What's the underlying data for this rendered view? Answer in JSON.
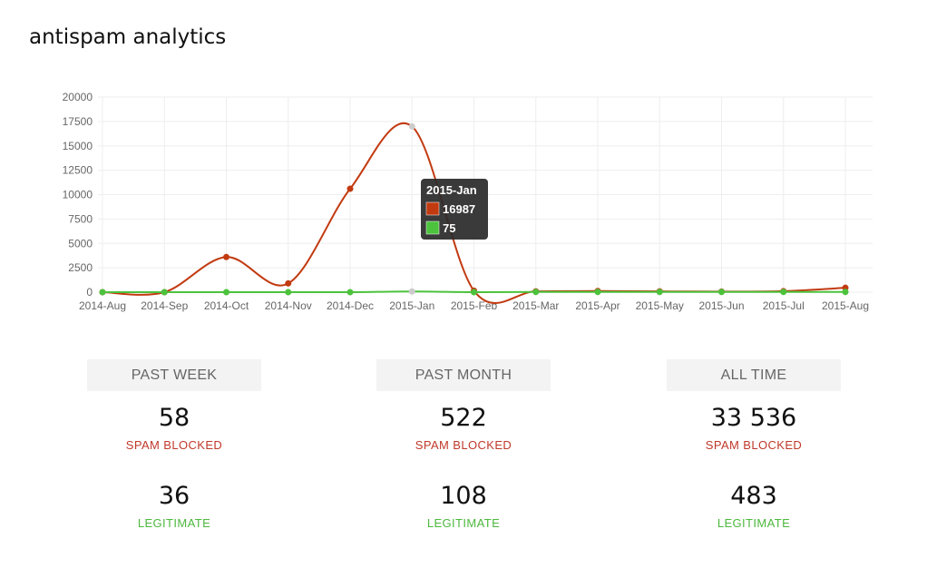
{
  "page": {
    "title": "antispam analytics"
  },
  "chart_data": {
    "type": "line",
    "x": [
      "2014-Aug",
      "2014-Sep",
      "2014-Oct",
      "2014-Nov",
      "2014-Dec",
      "2015-Jan",
      "2015-Feb",
      "2015-Mar",
      "2015-Apr",
      "2015-May",
      "2015-Jun",
      "2015-Jul",
      "2015-Aug"
    ],
    "ylim": [
      0,
      20000
    ],
    "yticks": [
      0,
      2500,
      5000,
      7500,
      10000,
      12500,
      15000,
      17500,
      20000
    ],
    "grid": true,
    "series": [
      {
        "name": "",
        "color": "#c23a10",
        "values": [
          0,
          0,
          3600,
          900,
          10600,
          16987,
          150,
          80,
          120,
          80,
          60,
          100,
          450
        ]
      },
      {
        "name": "",
        "color": "#4cc23d",
        "values": [
          0,
          0,
          0,
          0,
          0,
          75,
          0,
          20,
          20,
          20,
          20,
          20,
          20
        ]
      }
    ],
    "tooltip": {
      "title": "2015-Jan",
      "rows": [
        {
          "color": "#c23a10",
          "value": "16987"
        },
        {
          "color": "#4cc23d",
          "value": "75"
        }
      ]
    }
  },
  "stats": {
    "columns": [
      {
        "header": "PAST WEEK",
        "spam": "58",
        "spam_label": "SPAM BLOCKED",
        "legit": "36",
        "legit_label": "LEGITIMATE"
      },
      {
        "header": "PAST MONTH",
        "spam": "522",
        "spam_label": "SPAM BLOCKED",
        "legit": "108",
        "legit_label": "LEGITIMATE"
      },
      {
        "header": "ALL TIME",
        "spam": "33 536",
        "spam_label": "SPAM BLOCKED",
        "legit": "483",
        "legit_label": "LEGITIMATE"
      }
    ]
  }
}
